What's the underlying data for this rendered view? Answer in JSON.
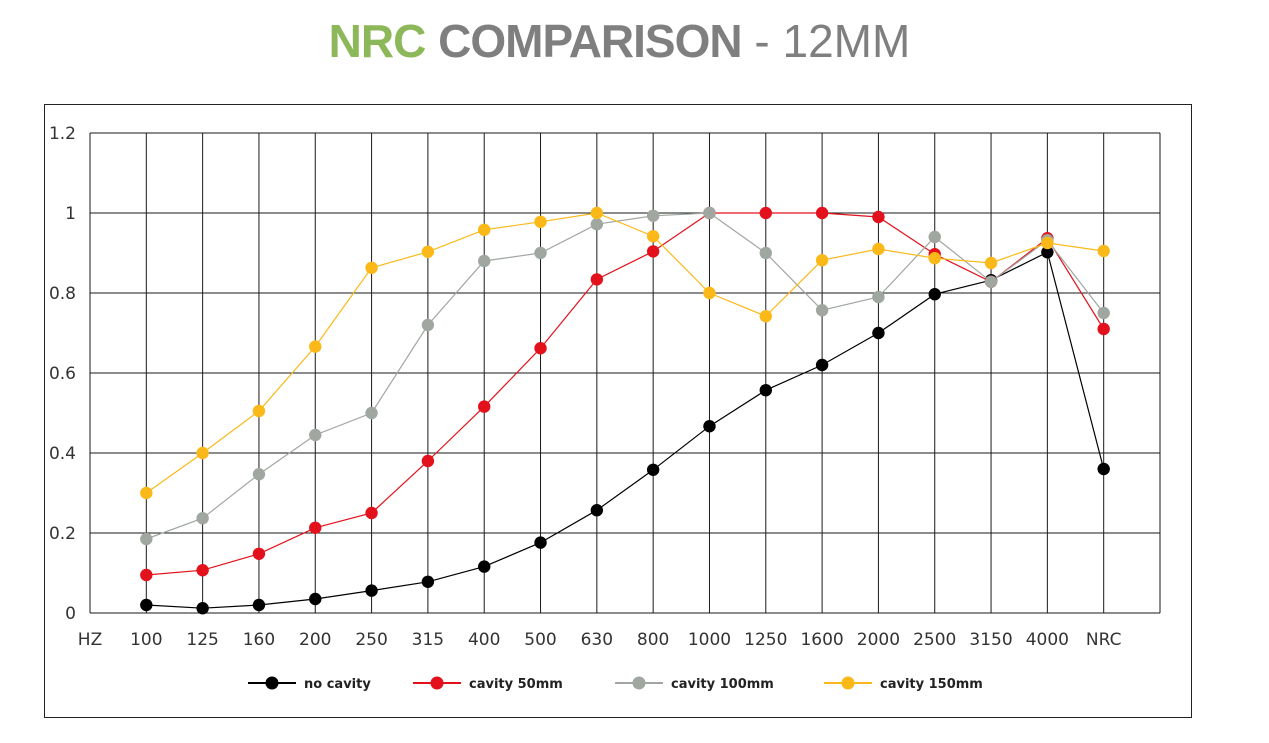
{
  "header": {
    "title_part1": "NRC",
    "title_part2": "COMPARISON",
    "title_part3": " - 12MM"
  },
  "chart_data": {
    "type": "line",
    "title": "NRC COMPARISON - 12MM",
    "xlabel": "HZ",
    "ylabel": "",
    "categories": [
      "100",
      "125",
      "160",
      "200",
      "250",
      "315",
      "400",
      "500",
      "630",
      "800",
      "1000",
      "1250",
      "1600",
      "2000",
      "2500",
      "3150",
      "4000",
      "NRC"
    ],
    "ylim": [
      0,
      1.2
    ],
    "yticks": [
      {
        "value": 0,
        "label": "0"
      },
      {
        "value": 0.2,
        "label": "0.2"
      },
      {
        "value": 0.4,
        "label": "0.4"
      },
      {
        "value": 0.6,
        "label": "0.6"
      },
      {
        "value": 0.8,
        "label": "0.8"
      },
      {
        "value": 1,
        "label": "1"
      },
      {
        "value": 1.2,
        "label": "1.2"
      }
    ],
    "grid": true,
    "legend_position": "bottom",
    "series": [
      {
        "name": "no cavity",
        "color": "#000000",
        "values": [
          0.02,
          0.012,
          0.02,
          0.035,
          0.056,
          0.078,
          0.116,
          0.176,
          0.257,
          0.358,
          0.467,
          0.557,
          0.62,
          0.7,
          0.797,
          0.832,
          0.902,
          0.36
        ]
      },
      {
        "name": "cavity 50mm",
        "color": "#e3111b",
        "values": [
          0.095,
          0.107,
          0.148,
          0.213,
          0.25,
          0.38,
          0.516,
          0.662,
          0.834,
          0.904,
          1.0,
          1.0,
          1.0,
          0.99,
          0.897,
          0.828,
          0.937,
          0.71
        ]
      },
      {
        "name": "cavity 100mm",
        "color": "#a0a7a0",
        "values": [
          0.185,
          0.237,
          0.347,
          0.445,
          0.5,
          0.72,
          0.88,
          0.9,
          0.972,
          0.993,
          1.0,
          0.9,
          0.757,
          0.79,
          0.94,
          0.828,
          0.932,
          0.75
        ]
      },
      {
        "name": "cavity 150mm",
        "color": "#fbb919",
        "values": [
          0.3,
          0.4,
          0.505,
          0.666,
          0.863,
          0.903,
          0.958,
          0.978,
          1.0,
          0.942,
          0.8,
          0.742,
          0.882,
          0.91,
          0.887,
          0.875,
          0.925,
          0.905
        ]
      }
    ]
  }
}
